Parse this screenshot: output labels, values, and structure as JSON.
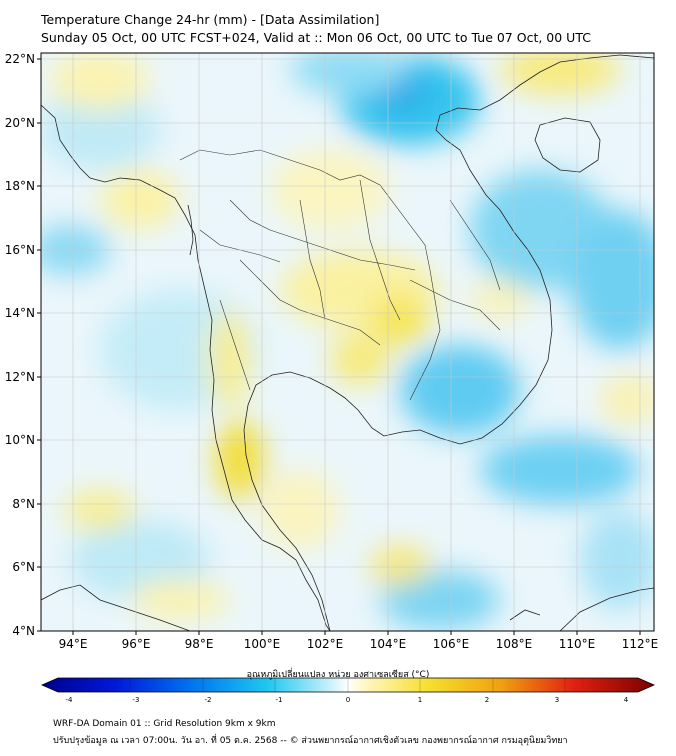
{
  "header": {
    "title": "Temperature Change 24-hr (mm) - [Data Assimilation]",
    "subtitle": "Sunday 05 Oct, 00 UTC FCST+024, Valid at :: Mon 06 Oct, 00 UTC to Tue 07 Oct, 00 UTC"
  },
  "map": {
    "lat_labels": [
      "22°N",
      "20°N",
      "18°N",
      "16°N",
      "14°N",
      "12°N",
      "10°N",
      "8°N",
      "6°N",
      "4°N"
    ],
    "lon_labels": [
      "94°E",
      "96°E",
      "98°E",
      "100°E",
      "102°E",
      "104°E",
      "106°E",
      "108°E",
      "110°E",
      "112°E"
    ],
    "lat_range": [
      4,
      22.2
    ],
    "lon_range": [
      93,
      112.4
    ]
  },
  "colorbar": {
    "label": "อุณหภูมิเปลี่ยนแปลง หน่วย องศาเซลเซียส (°C)",
    "ticks": [
      "-4",
      "-3",
      "-2",
      "-1",
      "0",
      "1",
      "2",
      "3",
      "4"
    ],
    "range": [
      -4,
      4
    ]
  },
  "footer": {
    "line1": "WRF-DA Domain 01 :: Grid Resolution 9km x 9km",
    "line2": "ปรับปรุงข้อมูล ณ เวลา 07:00น. วัน อา. ที่ 05 ต.ค. 2568 -- © ส่วนพยากรณ์อากาศเชิงตัวเลข กองพยากรณ์อากาศ กรมอุตุนิยมวิทยา"
  },
  "colors": {
    "cold": "#00a8e8",
    "warm": "#f2e24a",
    "land_border": "#222222"
  }
}
